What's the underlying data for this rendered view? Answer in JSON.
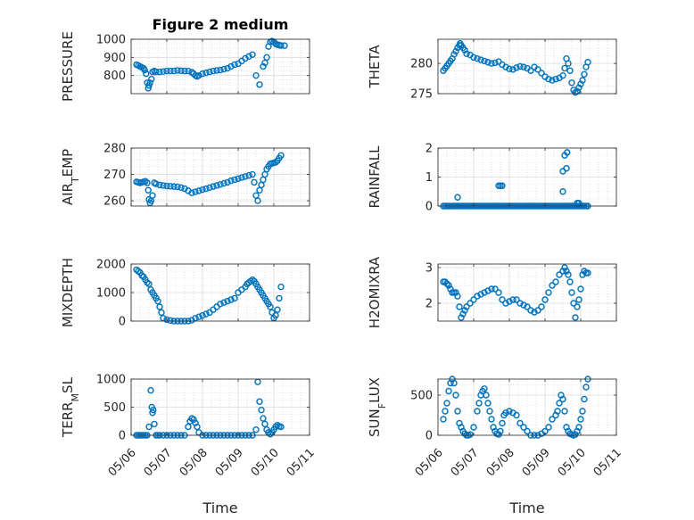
{
  "chart_data": [
    {
      "type": "scatter",
      "title": "Figure 2 medium",
      "xlabel": "",
      "ylabel": "PRESSURE",
      "ylim": [
        700,
        1000
      ],
      "yticks": [
        800,
        900,
        1000
      ],
      "xlim": [
        0,
        5
      ],
      "xtick_labels": [
        "05/06",
        "05/07",
        "05/08",
        "05/09",
        "05/10",
        "05/11"
      ],
      "grid": true,
      "color": "#0072BD",
      "x": [
        0.15,
        0.2,
        0.25,
        0.3,
        0.35,
        0.38,
        0.42,
        0.45,
        0.48,
        0.5,
        0.53,
        0.57,
        0.6,
        0.65,
        0.7,
        0.8,
        0.9,
        1.0,
        1.1,
        1.2,
        1.3,
        1.4,
        1.5,
        1.6,
        1.7,
        1.75,
        1.8,
        1.85,
        1.9,
        2.0,
        2.1,
        2.2,
        2.3,
        2.4,
        2.5,
        2.6,
        2.7,
        2.8,
        2.9,
        3.0,
        3.1,
        3.2,
        3.3,
        3.4,
        3.5,
        3.6,
        3.7,
        3.75,
        3.8,
        3.85,
        3.9,
        3.95,
        4.0,
        4.05,
        4.1,
        4.15,
        4.2,
        4.3
      ],
      "y": [
        860,
        855,
        850,
        845,
        840,
        830,
        810,
        760,
        730,
        745,
        760,
        780,
        820,
        825,
        820,
        820,
        822,
        825,
        825,
        825,
        828,
        826,
        825,
        825,
        818,
        810,
        800,
        795,
        800,
        810,
        815,
        820,
        825,
        828,
        830,
        835,
        840,
        850,
        860,
        865,
        880,
        895,
        905,
        915,
        800,
        750,
        850,
        870,
        900,
        960,
        985,
        990,
        985,
        975,
        970,
        968,
        965,
        965
      ]
    },
    {
      "type": "scatter",
      "title": "",
      "xlabel": "",
      "ylabel": "THETA",
      "ylim": [
        275,
        284
      ],
      "yticks": [
        275,
        280
      ],
      "xlim": [
        0,
        5
      ],
      "xtick_labels": [
        "05/06",
        "05/07",
        "05/08",
        "05/09",
        "05/10",
        "05/11"
      ],
      "grid": true,
      "color": "#0072BD",
      "x": [
        0.15,
        0.2,
        0.25,
        0.3,
        0.35,
        0.4,
        0.45,
        0.5,
        0.55,
        0.6,
        0.62,
        0.65,
        0.7,
        0.75,
        0.8,
        0.9,
        1.0,
        1.1,
        1.2,
        1.3,
        1.4,
        1.5,
        1.6,
        1.7,
        1.8,
        1.9,
        2.0,
        2.1,
        2.2,
        2.3,
        2.4,
        2.5,
        2.6,
        2.7,
        2.8,
        2.9,
        3.0,
        3.1,
        3.2,
        3.3,
        3.4,
        3.5,
        3.55,
        3.6,
        3.65,
        3.7,
        3.75,
        3.8,
        3.85,
        3.9,
        3.95,
        4.0,
        4.05,
        4.1,
        4.15,
        4.2
      ],
      "y": [
        278.8,
        279.2,
        279.6,
        280,
        280.4,
        280.8,
        281.5,
        282,
        282.6,
        283,
        283.3,
        283,
        282.6,
        282.2,
        281.6,
        281.4,
        281,
        280.8,
        280.6,
        280.4,
        280.2,
        280.0,
        280.1,
        280.3,
        279.8,
        279.4,
        279.1,
        279.0,
        279.3,
        279.5,
        279.4,
        279.2,
        278.8,
        279.4,
        279.0,
        278.4,
        277.8,
        277.4,
        277.2,
        277.4,
        277.6,
        278.0,
        279.2,
        280.8,
        280.0,
        278.8,
        276.8,
        275.6,
        275.2,
        275.4,
        276.0,
        276.6,
        277.2,
        278.2,
        279.4,
        280.2
      ]
    },
    {
      "type": "scatter",
      "title": "",
      "xlabel": "",
      "ylabel": "AIR_TEMP",
      "ylim": [
        258,
        280
      ],
      "yticks": [
        260,
        270,
        280
      ],
      "xlim": [
        0,
        5
      ],
      "xtick_labels": [
        "05/06",
        "05/07",
        "05/08",
        "05/09",
        "05/10",
        "05/11"
      ],
      "grid": true,
      "color": "#0072BD",
      "x": [
        0.15,
        0.2,
        0.25,
        0.3,
        0.35,
        0.4,
        0.45,
        0.48,
        0.5,
        0.53,
        0.56,
        0.6,
        0.65,
        0.7,
        0.8,
        0.9,
        1.0,
        1.1,
        1.2,
        1.3,
        1.4,
        1.5,
        1.6,
        1.7,
        1.8,
        1.9,
        2.0,
        2.1,
        2.2,
        2.3,
        2.4,
        2.5,
        2.6,
        2.7,
        2.8,
        2.9,
        3.0,
        3.1,
        3.2,
        3.3,
        3.4,
        3.45,
        3.5,
        3.55,
        3.6,
        3.65,
        3.7,
        3.75,
        3.8,
        3.85,
        3.9,
        3.95,
        4.0,
        4.05,
        4.1,
        4.15,
        4.2
      ],
      "y": [
        267.2,
        267.0,
        266.8,
        267.0,
        267.2,
        267.4,
        266.8,
        264.0,
        260.5,
        259.2,
        260.0,
        262.0,
        266.8,
        266.4,
        266.0,
        265.8,
        265.6,
        265.5,
        265.4,
        265.3,
        265.0,
        264.6,
        263.8,
        263.0,
        263.4,
        263.8,
        264.2,
        264.6,
        265.0,
        265.4,
        265.8,
        266.2,
        266.6,
        267.0,
        267.6,
        268.0,
        268.4,
        268.8,
        269.2,
        269.6,
        270.0,
        267.0,
        262.0,
        260.0,
        264.0,
        266.0,
        268.0,
        270.0,
        272.0,
        273.0,
        274.0,
        274.2,
        274.4,
        274.6,
        275.2,
        276.2,
        277.2
      ]
    },
    {
      "type": "scatter",
      "title": "",
      "xlabel": "",
      "ylabel": "RAINFALL",
      "ylim": [
        0,
        2
      ],
      "yticks": [
        0,
        1,
        2
      ],
      "xlim": [
        0,
        5
      ],
      "xtick_labels": [
        "05/06",
        "05/07",
        "05/08",
        "05/09",
        "05/10",
        "05/11"
      ],
      "grid": true,
      "color": "#0072BD",
      "x": [
        0.15,
        0.2,
        0.25,
        0.3,
        0.35,
        0.4,
        0.45,
        0.5,
        0.55,
        0.6,
        0.65,
        0.7,
        0.75,
        0.8,
        0.85,
        0.9,
        0.95,
        1.0,
        1.05,
        1.1,
        1.15,
        1.2,
        1.25,
        1.3,
        1.35,
        1.4,
        1.45,
        1.5,
        1.55,
        1.6,
        1.65,
        1.7,
        1.75,
        1.8,
        1.85,
        1.9,
        1.95,
        2.0,
        2.05,
        2.1,
        2.15,
        2.2,
        2.25,
        2.3,
        2.35,
        2.4,
        2.45,
        2.5,
        2.55,
        2.6,
        2.65,
        2.7,
        2.75,
        2.8,
        2.85,
        2.9,
        2.95,
        3.0,
        3.05,
        3.1,
        3.15,
        3.2,
        3.25,
        3.3,
        3.35,
        3.4,
        3.45,
        3.5,
        3.55,
        3.6,
        3.65,
        3.7,
        3.75,
        3.8,
        3.85,
        3.9,
        3.95,
        4.0,
        4.05,
        4.1,
        4.15,
        4.2,
        0.55,
        1.7,
        1.75,
        1.8,
        3.5,
        3.5,
        3.55,
        3.6,
        3.62,
        3.9,
        3.95
      ],
      "y": [
        0,
        0,
        0,
        0,
        0,
        0,
        0,
        0,
        0,
        0,
        0,
        0,
        0,
        0,
        0,
        0,
        0,
        0,
        0,
        0,
        0,
        0,
        0,
        0,
        0,
        0,
        0,
        0,
        0,
        0,
        0,
        0,
        0,
        0,
        0,
        0,
        0,
        0,
        0,
        0,
        0,
        0,
        0,
        0,
        0,
        0,
        0,
        0,
        0,
        0,
        0,
        0,
        0,
        0,
        0,
        0,
        0,
        0,
        0,
        0,
        0,
        0,
        0,
        0,
        0,
        0,
        0,
        0,
        0,
        0,
        0,
        0,
        0,
        0,
        0,
        0,
        0,
        0,
        0,
        0,
        0,
        0,
        0.3,
        0.7,
        0.7,
        0.7,
        1.2,
        0.5,
        1.75,
        1.3,
        1.85,
        0.1,
        0.1
      ]
    },
    {
      "type": "scatter",
      "title": "",
      "xlabel": "",
      "ylabel": "MIXDEPTH",
      "ylim": [
        0,
        2000
      ],
      "yticks": [
        0,
        1000,
        2000
      ],
      "xlim": [
        0,
        5
      ],
      "xtick_labels": [
        "05/06",
        "05/07",
        "05/08",
        "05/09",
        "05/10",
        "05/11"
      ],
      "grid": true,
      "color": "#0072BD",
      "x": [
        0.15,
        0.2,
        0.25,
        0.3,
        0.35,
        0.4,
        0.45,
        0.5,
        0.55,
        0.6,
        0.65,
        0.7,
        0.75,
        0.8,
        0.85,
        0.9,
        1.0,
        1.1,
        1.2,
        1.3,
        1.4,
        1.5,
        1.6,
        1.7,
        1.8,
        1.9,
        2.0,
        2.1,
        2.2,
        2.3,
        2.4,
        2.5,
        2.6,
        2.7,
        2.8,
        2.9,
        3.0,
        3.1,
        3.2,
        3.25,
        3.3,
        3.35,
        3.4,
        3.45,
        3.5,
        3.55,
        3.6,
        3.65,
        3.7,
        3.75,
        3.8,
        3.85,
        3.9,
        3.95,
        4.0,
        4.05,
        4.1,
        4.15,
        4.2
      ],
      "y": [
        1800,
        1750,
        1700,
        1600,
        1550,
        1450,
        1350,
        1300,
        1100,
        1000,
        900,
        800,
        700,
        500,
        300,
        100,
        50,
        20,
        0,
        0,
        0,
        0,
        0,
        30,
        100,
        150,
        200,
        250,
        300,
        400,
        500,
        600,
        650,
        700,
        750,
        800,
        1000,
        1100,
        1200,
        1300,
        1350,
        1400,
        1450,
        1400,
        1300,
        1200,
        1100,
        1000,
        900,
        800,
        700,
        600,
        500,
        300,
        100,
        200,
        400,
        800,
        1200
      ]
    },
    {
      "type": "scatter",
      "title": "",
      "xlabel": "",
      "ylabel": "H2OMIXRA",
      "ylim": [
        1.5,
        3.1
      ],
      "yticks": [
        2,
        3
      ],
      "xlim": [
        0,
        5
      ],
      "xtick_labels": [
        "05/06",
        "05/07",
        "05/08",
        "05/09",
        "05/10",
        "05/11"
      ],
      "grid": true,
      "color": "#0072BD",
      "x": [
        0.15,
        0.2,
        0.25,
        0.3,
        0.35,
        0.4,
        0.45,
        0.5,
        0.55,
        0.6,
        0.65,
        0.7,
        0.75,
        0.8,
        0.9,
        1.0,
        1.1,
        1.2,
        1.3,
        1.4,
        1.5,
        1.6,
        1.7,
        1.8,
        1.9,
        2.0,
        2.1,
        2.2,
        2.3,
        2.4,
        2.5,
        2.6,
        2.7,
        2.8,
        2.9,
        3.0,
        3.1,
        3.2,
        3.3,
        3.4,
        3.5,
        3.55,
        3.6,
        3.65,
        3.7,
        3.75,
        3.8,
        3.85,
        3.9,
        3.95,
        4.0,
        4.05,
        4.1,
        4.15,
        4.2
      ],
      "y": [
        2.6,
        2.6,
        2.55,
        2.5,
        2.4,
        2.3,
        2.3,
        2.3,
        2.2,
        1.9,
        1.6,
        1.7,
        1.8,
        1.9,
        2.0,
        2.1,
        2.2,
        2.25,
        2.3,
        2.35,
        2.4,
        2.4,
        2.3,
        2.1,
        2.0,
        2.05,
        2.1,
        2.1,
        2.0,
        1.95,
        1.9,
        1.8,
        1.75,
        1.8,
        1.9,
        2.1,
        2.3,
        2.5,
        2.6,
        2.8,
        2.9,
        3.0,
        2.9,
        2.8,
        2.6,
        2.3,
        2.0,
        1.6,
        1.9,
        2.1,
        2.4,
        2.8,
        2.9,
        2.85,
        2.85
      ]
    },
    {
      "type": "scatter",
      "title": "",
      "xlabel": "Time",
      "ylabel": "TERR_MSL",
      "ylim": [
        0,
        1000
      ],
      "yticks": [
        0,
        500,
        1000
      ],
      "xlim": [
        0,
        5
      ],
      "xtick_labels": [
        "05/06",
        "05/07",
        "05/08",
        "05/09",
        "05/10",
        "05/11"
      ],
      "grid": true,
      "color": "#0072BD",
      "x": [
        0.15,
        0.2,
        0.25,
        0.3,
        0.35,
        0.4,
        0.45,
        0.5,
        0.55,
        0.58,
        0.6,
        0.62,
        0.65,
        0.7,
        0.75,
        0.8,
        0.9,
        1.0,
        1.1,
        1.2,
        1.3,
        1.4,
        1.5,
        1.6,
        1.65,
        1.7,
        1.75,
        1.8,
        1.85,
        1.9,
        2.0,
        2.1,
        2.2,
        2.3,
        2.4,
        2.5,
        2.6,
        2.7,
        2.8,
        2.9,
        3.0,
        3.1,
        3.2,
        3.3,
        3.4,
        3.5,
        3.55,
        3.6,
        3.65,
        3.7,
        3.75,
        3.8,
        3.85,
        3.9,
        3.95,
        4.0,
        4.05,
        4.1,
        4.15,
        4.2
      ],
      "y": [
        0,
        0,
        0,
        0,
        0,
        0,
        0,
        150,
        800,
        500,
        400,
        450,
        200,
        0,
        0,
        0,
        0,
        0,
        0,
        0,
        0,
        0,
        0,
        150,
        250,
        300,
        280,
        220,
        150,
        50,
        0,
        0,
        0,
        0,
        0,
        0,
        0,
        0,
        0,
        0,
        0,
        0,
        0,
        0,
        0,
        100,
        950,
        600,
        450,
        300,
        200,
        100,
        50,
        20,
        50,
        100,
        150,
        180,
        160,
        150
      ]
    },
    {
      "type": "scatter",
      "title": "",
      "xlabel": "Time",
      "ylabel": "SUN_FLUX",
      "ylim": [
        0,
        700
      ],
      "yticks": [
        0,
        500
      ],
      "xlim": [
        0,
        5
      ],
      "xtick_labels": [
        "05/06",
        "05/07",
        "05/08",
        "05/09",
        "05/10",
        "05/11"
      ],
      "grid": true,
      "color": "#0072BD",
      "x": [
        0.15,
        0.2,
        0.25,
        0.3,
        0.35,
        0.4,
        0.45,
        0.5,
        0.55,
        0.6,
        0.65,
        0.7,
        0.75,
        0.8,
        0.85,
        0.9,
        1.0,
        1.1,
        1.15,
        1.2,
        1.25,
        1.3,
        1.35,
        1.4,
        1.45,
        1.5,
        1.55,
        1.6,
        1.65,
        1.7,
        1.75,
        1.8,
        1.85,
        1.9,
        2.0,
        2.1,
        2.2,
        2.3,
        2.4,
        2.5,
        2.6,
        2.7,
        2.8,
        2.9,
        3.0,
        3.1,
        3.2,
        3.3,
        3.35,
        3.4,
        3.45,
        3.5,
        3.55,
        3.6,
        3.65,
        3.7,
        3.75,
        3.8,
        3.85,
        3.9,
        3.95,
        4.0,
        4.05,
        4.1,
        4.15,
        4.2
      ],
      "y": [
        200,
        300,
        400,
        550,
        650,
        700,
        650,
        500,
        300,
        150,
        100,
        50,
        20,
        0,
        0,
        10,
        100,
        300,
        400,
        500,
        550,
        580,
        500,
        400,
        300,
        200,
        100,
        50,
        20,
        10,
        50,
        150,
        250,
        280,
        300,
        280,
        250,
        150,
        100,
        50,
        0,
        0,
        0,
        20,
        50,
        100,
        200,
        250,
        300,
        400,
        500,
        450,
        300,
        100,
        50,
        20,
        10,
        0,
        10,
        50,
        100,
        200,
        300,
        450,
        600,
        700
      ]
    }
  ]
}
